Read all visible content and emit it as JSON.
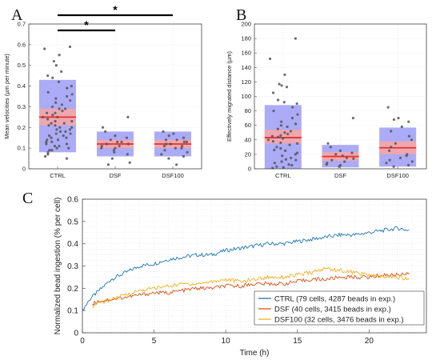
{
  "chart_data": [
    {
      "panel": "A",
      "type": "scatter",
      "ylabel": "Mean velocities (µm per minute)",
      "ylim": [
        0,
        0.7
      ],
      "yticks": [
        0,
        0.1,
        0.2,
        0.3,
        0.4,
        0.5,
        0.6,
        0.7
      ],
      "ytick_labels": [
        "0",
        "0.1",
        "0.2",
        "0.3",
        "0.4",
        "0.5",
        "0.6",
        "0.7"
      ],
      "categories": [
        "CTRL",
        "DSF",
        "DSF100"
      ],
      "groups": [
        {
          "name": "CTRL",
          "mean": 0.25,
          "sem_low": 0.21,
          "sem_high": 0.29,
          "sd_low": 0.08,
          "sd_high": 0.43,
          "points": [
            0.59,
            0.58,
            0.55,
            0.52,
            0.5,
            0.47,
            0.45,
            0.44,
            0.42,
            0.4,
            0.39,
            0.37,
            0.36,
            0.35,
            0.34,
            0.33,
            0.32,
            0.31,
            0.3,
            0.29,
            0.29,
            0.28,
            0.27,
            0.27,
            0.26,
            0.25,
            0.25,
            0.24,
            0.23,
            0.23,
            0.22,
            0.22,
            0.21,
            0.21,
            0.2,
            0.2,
            0.19,
            0.19,
            0.18,
            0.18,
            0.17,
            0.17,
            0.16,
            0.16,
            0.15,
            0.15,
            0.14,
            0.14,
            0.13,
            0.13,
            0.12,
            0.12,
            0.11,
            0.11,
            0.1,
            0.1,
            0.09,
            0.09,
            0.08,
            0.07,
            0.06,
            0.05
          ]
        },
        {
          "name": "DSF",
          "mean": 0.12,
          "sem_low": 0.1,
          "sem_high": 0.14,
          "sd_low": 0.06,
          "sd_high": 0.18,
          "points": [
            0.25,
            0.2,
            0.18,
            0.16,
            0.15,
            0.14,
            0.13,
            0.13,
            0.12,
            0.12,
            0.11,
            0.11,
            0.1,
            0.1,
            0.09,
            0.08,
            0.07,
            0.05,
            0.03,
            0.02
          ]
        },
        {
          "name": "DSF100",
          "mean": 0.12,
          "sem_low": 0.1,
          "sem_high": 0.14,
          "sd_low": 0.06,
          "sd_high": 0.18,
          "points": [
            0.18,
            0.17,
            0.16,
            0.15,
            0.14,
            0.14,
            0.13,
            0.13,
            0.12,
            0.12,
            0.11,
            0.11,
            0.1,
            0.1,
            0.09,
            0.08,
            0.07,
            0.06,
            0.05,
            0.02
          ]
        }
      ],
      "significance": [
        {
          "from": "CTRL",
          "to": "DSF100",
          "label": "*"
        },
        {
          "from": "CTRL",
          "to": "DSF",
          "label": "*"
        }
      ],
      "grid": true
    },
    {
      "panel": "B",
      "type": "scatter",
      "ylabel": "Effectively migrated distance (µm)",
      "ylim": [
        0,
        200
      ],
      "yticks": [
        0,
        20,
        40,
        60,
        80,
        100,
        120,
        140,
        160,
        180,
        200
      ],
      "ytick_labels": [
        "0",
        "20",
        "40",
        "60",
        "80",
        "100",
        "120",
        "140",
        "160",
        "180",
        "200"
      ],
      "categories": [
        "CTRL",
        "DSF",
        "DSF100"
      ],
      "groups": [
        {
          "name": "CTRL",
          "mean": 43,
          "sem_low": 35,
          "sem_high": 54,
          "sd_low": 0,
          "sd_high": 88,
          "points": [
            180,
            152,
            130,
            117,
            115,
            113,
            105,
            95,
            92,
            90,
            85,
            80,
            75,
            70,
            65,
            62,
            60,
            58,
            55,
            52,
            50,
            48,
            46,
            45,
            44,
            42,
            40,
            38,
            36,
            35,
            33,
            30,
            28,
            26,
            25,
            22,
            20,
            18,
            15,
            13,
            12,
            10,
            8,
            6,
            5,
            3,
            2,
            1
          ]
        },
        {
          "name": "DSF",
          "mean": 17,
          "sem_low": 11,
          "sem_high": 23,
          "sd_low": 2,
          "sd_high": 33,
          "points": [
            70,
            35,
            30,
            25,
            22,
            20,
            18,
            15,
            14,
            12,
            10,
            8,
            6,
            5,
            3
          ]
        },
        {
          "name": "DSF100",
          "mean": 29,
          "sem_low": 20,
          "sem_high": 38,
          "sd_low": 3,
          "sd_high": 57,
          "points": [
            85,
            70,
            68,
            65,
            58,
            52,
            45,
            40,
            35,
            30,
            25,
            20,
            18,
            15,
            12,
            10,
            8,
            5,
            3
          ]
        }
      ],
      "grid": true
    },
    {
      "panel": "C",
      "type": "line",
      "xlabel": "Time (h)",
      "ylabel": "Normalized bead ingestion (% per cell)",
      "xlim": [
        0,
        24
      ],
      "ylim": [
        0,
        0.6
      ],
      "xticks": [
        0,
        5,
        10,
        15,
        20
      ],
      "xtick_labels": [
        "0",
        "5",
        "10",
        "15",
        "20"
      ],
      "yticks": [
        0,
        0.1,
        0.2,
        0.3,
        0.4,
        0.5,
        0.6
      ],
      "ytick_labels": [
        "0",
        "0.1",
        "0.2",
        "0.3",
        "0.4",
        "0.5",
        "0.6"
      ],
      "grid": true,
      "legend_position": "bottom-right",
      "series": [
        {
          "name": "CTRL (79 cells, 4287 beads in exp.)",
          "color": "#1f77b4",
          "x": [
            0,
            0.5,
            1,
            1.5,
            2,
            3,
            4,
            5,
            6,
            7,
            8,
            9,
            10,
            11,
            12,
            13,
            14,
            15,
            16,
            17,
            18,
            19,
            20,
            21,
            22,
            22.8
          ],
          "y": [
            0.1,
            0.15,
            0.18,
            0.21,
            0.24,
            0.27,
            0.3,
            0.31,
            0.33,
            0.34,
            0.35,
            0.35,
            0.37,
            0.38,
            0.39,
            0.4,
            0.4,
            0.41,
            0.42,
            0.43,
            0.44,
            0.44,
            0.45,
            0.46,
            0.47,
            0.46
          ]
        },
        {
          "name": "DSF (40 cells, 3415 beads in exp.)",
          "color": "#d95319",
          "x": [
            0.7,
            1,
            2,
            3,
            4,
            5,
            6,
            7,
            8,
            9,
            10,
            11,
            12,
            13,
            14,
            15,
            16,
            17,
            18,
            19,
            20,
            21,
            22,
            22.8
          ],
          "y": [
            0.13,
            0.14,
            0.15,
            0.16,
            0.17,
            0.18,
            0.18,
            0.19,
            0.2,
            0.2,
            0.21,
            0.21,
            0.22,
            0.22,
            0.22,
            0.23,
            0.24,
            0.24,
            0.25,
            0.25,
            0.25,
            0.26,
            0.26,
            0.27
          ]
        },
        {
          "name": "DSF100 (32 cells, 3476 beads in exp.)",
          "color": "#edb120",
          "x": [
            0.7,
            1,
            2,
            3,
            4,
            5,
            6,
            7,
            8,
            9,
            10,
            11,
            12,
            13,
            14,
            15,
            16,
            17,
            18,
            19,
            20,
            21,
            22,
            22.8
          ],
          "y": [
            0.12,
            0.13,
            0.15,
            0.17,
            0.19,
            0.2,
            0.21,
            0.22,
            0.22,
            0.23,
            0.24,
            0.23,
            0.24,
            0.25,
            0.25,
            0.26,
            0.27,
            0.29,
            0.28,
            0.27,
            0.26,
            0.25,
            0.25,
            0.24
          ]
        }
      ]
    }
  ]
}
